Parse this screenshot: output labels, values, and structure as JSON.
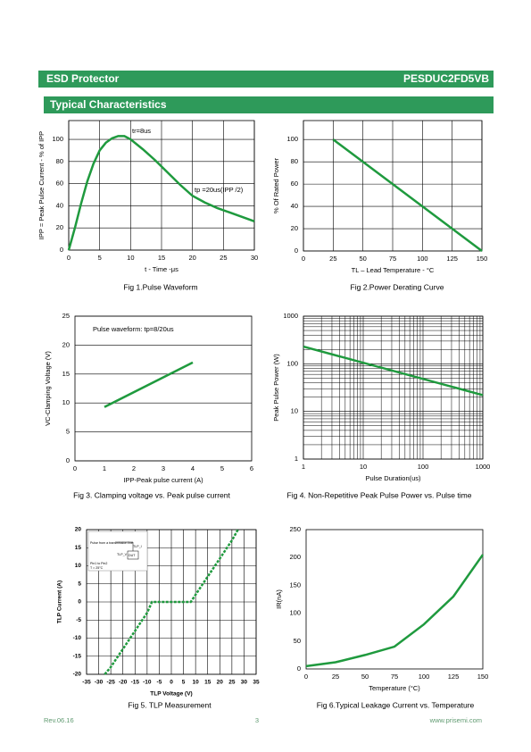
{
  "header": {
    "title": "ESD Protector",
    "part": "PESDUC2FD5VB"
  },
  "section": "Typical Characteristics",
  "footer": {
    "rev": "Rev.06.16",
    "page": "3",
    "url": "www.prisemi.com"
  },
  "chart_data": [
    {
      "type": "line",
      "caption": "Fig 1.Pulse Waveform",
      "x_label": "t - Time -μs",
      "y_label": "IPP = Peak Pulse Current - % of IPP",
      "annotations": [
        "tr=8us",
        "tp =20us(IPP /2)"
      ],
      "color": "#1f9a3e",
      "x": [
        0,
        1,
        2,
        3,
        4,
        5,
        6,
        7,
        8,
        9,
        10,
        12,
        14,
        16,
        18,
        20,
        22,
        24,
        26,
        28,
        30
      ],
      "values": [
        0,
        20,
        42,
        62,
        78,
        90,
        97,
        101,
        103,
        103,
        100,
        91,
        81,
        70,
        59,
        49,
        43,
        38,
        34,
        30,
        26
      ],
      "xlim": [
        0,
        30
      ],
      "xticks": [
        0,
        5,
        10,
        15,
        20,
        25,
        30
      ],
      "ylim": [
        0,
        117
      ],
      "yticks": [
        0,
        20,
        40,
        60,
        80,
        100
      ],
      "grid": "both"
    },
    {
      "type": "line",
      "caption": "Fig 2.Power Derating Curve",
      "x_label": "TL – Lead Temperature - °C",
      "y_label": "% Of Rated Power",
      "color": "#1f9a3e",
      "x": [
        25,
        150
      ],
      "values": [
        100,
        0
      ],
      "xlim": [
        0,
        150
      ],
      "xticks": [
        0,
        25,
        50,
        75,
        100,
        125,
        150
      ],
      "ylim": [
        0,
        117
      ],
      "yticks": [
        0,
        20,
        40,
        60,
        80,
        100
      ],
      "grid": "both"
    },
    {
      "type": "line",
      "caption": "Fig 3. Clamping voltage vs. Peak pulse current",
      "x_label": "IPP-Peak pulse current (A)",
      "y_label": "VC-Clamping Voltage (V)",
      "annotations": [
        "Pulse waveform: tp=8/20us"
      ],
      "color": "#1f9a3e",
      "x": [
        1,
        4
      ],
      "values": [
        9.3,
        17
      ],
      "xlim": [
        0,
        6
      ],
      "xticks": [
        0,
        1,
        2,
        3,
        4,
        5,
        6
      ],
      "ylim": [
        0,
        25
      ],
      "yticks": [
        0,
        5,
        10,
        15,
        20,
        25
      ],
      "grid": "y"
    },
    {
      "type": "line",
      "caption": "Fig 4. Non-Repetitive Peak Pulse Power vs. Pulse time",
      "x_label": "Pulse Duration(us)",
      "y_label": "Peak Pulse Power (W)",
      "color": "#1f9a3e",
      "x": [
        1,
        1000
      ],
      "values": [
        230,
        22
      ],
      "log_x": true,
      "log_y": true,
      "xlim": [
        1,
        1000
      ],
      "xticks": [
        1,
        10,
        100,
        1000
      ],
      "ylim": [
        1,
        1000
      ],
      "yticks": [
        1,
        10,
        100,
        1000
      ],
      "grid": "both"
    },
    {
      "type": "line",
      "caption": "Fig 5. TLP Measurement",
      "x_label": "TLP Voltage (V)",
      "y_label": "TLP Current (A)",
      "bold_labels": true,
      "inset": [
        "Pulse from a transmission line",
        "TLP_I",
        "TLP_V",
        "DUT",
        "Pin1 to Pin2",
        "T = 25°C"
      ],
      "color": "#1f9a3e",
      "dotted": true,
      "x": [
        -27.5,
        -25,
        -20,
        -15,
        -10,
        -8,
        8,
        10,
        15,
        20,
        25,
        27.5
      ],
      "values": [
        -20,
        -18,
        -13,
        -8,
        -3,
        0,
        0,
        2,
        7,
        12,
        17,
        20
      ],
      "xlim": [
        -35,
        35
      ],
      "xticks": [
        -35,
        -30,
        -25,
        -20,
        -15,
        -10,
        -5,
        0,
        5,
        10,
        15,
        20,
        25,
        30,
        35
      ],
      "ylim": [
        -20,
        20
      ],
      "yticks": [
        -20,
        -15,
        -10,
        -5,
        0,
        5,
        10,
        15,
        20
      ],
      "grid": "both",
      "grid_color": "#000"
    },
    {
      "type": "line",
      "caption": "Fig 6.Typical Leakage Current vs. Temperature",
      "x_label": "Temperature (°C)",
      "y_label": "IR(nA)",
      "color": "#1f9a3e",
      "x": [
        0,
        25,
        50,
        75,
        100,
        125,
        150
      ],
      "values": [
        5,
        12,
        25,
        40,
        80,
        130,
        205
      ],
      "xlim": [
        0,
        150
      ],
      "xticks": [
        0,
        25,
        50,
        75,
        100,
        125,
        150
      ],
      "ylim": [
        0,
        250
      ],
      "yticks": [
        0,
        50,
        100,
        150,
        200,
        250
      ],
      "grid": "none"
    }
  ]
}
